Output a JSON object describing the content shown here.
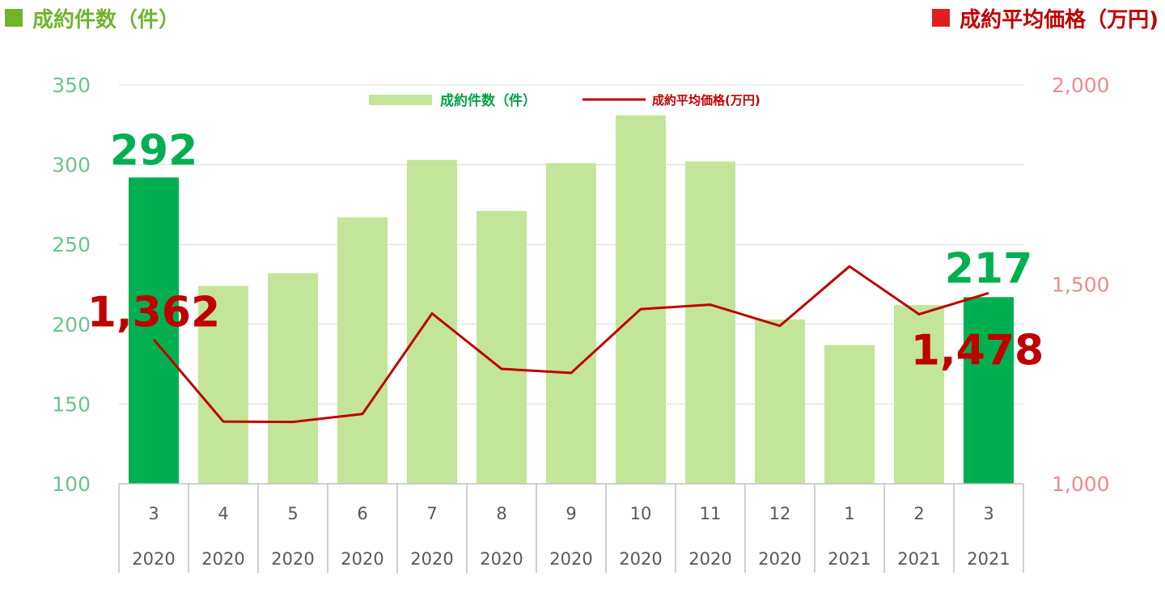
{
  "header": {
    "left_title": "成約件数（件）",
    "left_color": "#70b42c",
    "right_title": "成約平均価格（万円)",
    "right_color": "#c00000"
  },
  "legend": {
    "bar_label": "成約件数（件）",
    "line_label": "成約平均価格(万円)"
  },
  "chart_data": {
    "type": "bar",
    "categories": [
      {
        "month": "3",
        "year": "2020"
      },
      {
        "month": "4",
        "year": "2020"
      },
      {
        "month": "5",
        "year": "2020"
      },
      {
        "month": "6",
        "year": "2020"
      },
      {
        "month": "7",
        "year": "2020"
      },
      {
        "month": "8",
        "year": "2020"
      },
      {
        "month": "9",
        "year": "2020"
      },
      {
        "month": "10",
        "year": "2020"
      },
      {
        "month": "11",
        "year": "2020"
      },
      {
        "month": "12",
        "year": "2020"
      },
      {
        "month": "1",
        "year": "2021"
      },
      {
        "month": "2",
        "year": "2021"
      },
      {
        "month": "3",
        "year": "2021"
      }
    ],
    "series": [
      {
        "name": "成約件数（件）",
        "type": "bar",
        "axis": "left",
        "values": [
          292,
          224,
          232,
          267,
          303,
          271,
          301,
          331,
          302,
          203,
          187,
          212,
          217
        ],
        "highlight_indices": [
          0,
          12
        ],
        "color": "#c3e59a",
        "highlight_color": "#00b050"
      },
      {
        "name": "成約平均価格(万円)",
        "type": "line",
        "axis": "right",
        "values": [
          1362,
          1156,
          1155,
          1175,
          1427,
          1288,
          1278,
          1438,
          1449,
          1396,
          1545,
          1425,
          1478
        ],
        "color": "#c00000"
      }
    ],
    "y_left": {
      "min": 100,
      "max": 350,
      "ticks": [
        "100",
        "150",
        "200",
        "250",
        "300",
        "350"
      ]
    },
    "y_right": {
      "min": 1000,
      "max": 2000,
      "ticks": [
        "1,000",
        "1,500",
        "2,000"
      ]
    },
    "grid": true,
    "legend_position": "top-center",
    "data_labels": {
      "bar_first": "292",
      "bar_last": "217",
      "line_first": "1,362",
      "line_last": "1,478"
    }
  }
}
